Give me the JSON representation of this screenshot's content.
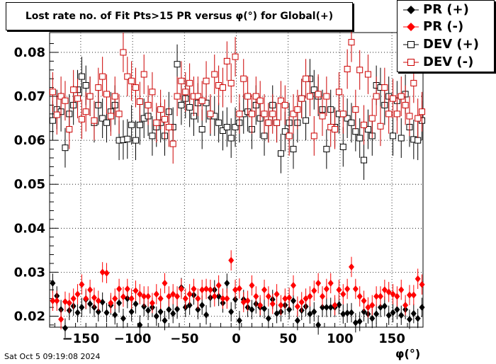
{
  "chart_data": {
    "type": "scatter",
    "title_html_parts": [
      "Lost rate no. of Fit Pts>15 PR versus ",
      "φ",
      "(",
      "°",
      ") for Global(+)"
    ],
    "title": "Lost rate no. of Fit Pts>15 PR versus φ(°) for Global(+)",
    "xlabel": "φ(°)",
    "ylabel": "",
    "xlim": [
      -180,
      180
    ],
    "ylim": [
      0.0175,
      0.0845
    ],
    "xticks": [
      -150,
      -100,
      -50,
      0,
      50,
      100,
      150
    ],
    "yticks": [
      0.02,
      0.03,
      0.04,
      0.05,
      0.06,
      0.07,
      0.08
    ],
    "grid": true,
    "legend_position": "top-right",
    "series": [
      {
        "name": "PR (+)",
        "marker": "filled-diamond",
        "color": "#000000",
        "x": [
          -177,
          -173,
          -169,
          -165,
          -161,
          -157,
          -153,
          -149,
          -145,
          -141,
          -137,
          -133,
          -129,
          -125,
          -121,
          -117,
          -113,
          -109,
          -105,
          -101,
          -97,
          -93,
          -89,
          -85,
          -81,
          -77,
          -73,
          -69,
          -65,
          -61,
          -57,
          -53,
          -49,
          -45,
          -41,
          -37,
          -33,
          -29,
          -25,
          -21,
          -17,
          -13,
          -9,
          -5,
          -1,
          3,
          7,
          11,
          15,
          19,
          23,
          27,
          31,
          35,
          39,
          43,
          47,
          51,
          55,
          59,
          63,
          67,
          71,
          75,
          79,
          83,
          87,
          91,
          95,
          99,
          103,
          107,
          111,
          115,
          119,
          123,
          127,
          131,
          135,
          139,
          143,
          147,
          151,
          155,
          159,
          163,
          167,
          171,
          175,
          179
        ],
        "y": [
          0.0275,
          0.0246,
          0.0215,
          0.0173,
          0.0213,
          0.0223,
          0.0208,
          0.022,
          0.0238,
          0.0228,
          0.022,
          0.021,
          0.0232,
          0.0208,
          0.0225,
          0.0203,
          0.023,
          0.0195,
          0.024,
          0.021,
          0.0228,
          0.018,
          0.0222,
          0.0213,
          0.022,
          0.02,
          0.021,
          0.019,
          0.0215,
          0.0206,
          0.0216,
          0.0265,
          0.022,
          0.0225,
          0.0248,
          0.0215,
          0.0225,
          0.0203,
          0.0242,
          0.026,
          0.0245,
          0.023,
          0.0275,
          0.021,
          0.0238,
          0.019,
          0.0238,
          0.022,
          0.0215,
          0.0228,
          0.022,
          0.0217,
          0.0195,
          0.0238,
          0.0206,
          0.021,
          0.0225,
          0.0215,
          0.0235,
          0.019,
          0.0213,
          0.0222,
          0.0205,
          0.021,
          0.018,
          0.022,
          0.022,
          0.022,
          0.022,
          0.0226,
          0.0205,
          0.0207,
          0.0208,
          0.0185,
          0.0188,
          0.021,
          0.0205,
          0.0195,
          0.0205,
          0.022,
          0.0223,
          0.0202,
          0.0208,
          0.0215,
          0.0202,
          0.0215,
          0.0193,
          0.0206,
          0.0195,
          0.022
        ],
        "err": [
          0.0022,
          0.0022,
          0.0022,
          0.0022,
          0.0022,
          0.0022,
          0.0022,
          0.0022,
          0.0022,
          0.0022,
          0.0022,
          0.0022,
          0.0022,
          0.0022,
          0.0022,
          0.0022,
          0.0022,
          0.0022,
          0.0022,
          0.0022,
          0.0022,
          0.0022,
          0.0022,
          0.0022,
          0.0022,
          0.0022,
          0.0022,
          0.0022,
          0.0022,
          0.0022,
          0.0022,
          0.0022,
          0.0022,
          0.0022,
          0.0022,
          0.0022,
          0.0022,
          0.0022,
          0.0022,
          0.0022,
          0.0022,
          0.0022,
          0.0022,
          0.0022,
          0.0022,
          0.0022,
          0.0022,
          0.0022,
          0.0022,
          0.0022,
          0.0022,
          0.0022,
          0.0022,
          0.0022,
          0.0022,
          0.0022,
          0.0022,
          0.0022,
          0.0022,
          0.0022,
          0.0022,
          0.0022,
          0.0022,
          0.0022,
          0.0022,
          0.0022,
          0.0022,
          0.0022,
          0.0022,
          0.0022,
          0.0022,
          0.0022,
          0.0022,
          0.0022,
          0.0022,
          0.0022,
          0.0022,
          0.0022,
          0.0022,
          0.0022,
          0.0022,
          0.0022,
          0.0022,
          0.0022,
          0.0022,
          0.0022,
          0.0022,
          0.0022,
          0.0022,
          0.0022
        ]
      },
      {
        "name": "PR (-)",
        "marker": "filled-diamond",
        "color": "#ff0000",
        "x": [
          -177,
          -173,
          -169,
          -165,
          -161,
          -157,
          -153,
          -149,
          -145,
          -141,
          -137,
          -133,
          -129,
          -125,
          -121,
          -117,
          -113,
          -109,
          -105,
          -101,
          -97,
          -93,
          -89,
          -85,
          -81,
          -77,
          -73,
          -69,
          -65,
          -61,
          -57,
          -53,
          -49,
          -45,
          -41,
          -37,
          -33,
          -29,
          -25,
          -21,
          -17,
          -13,
          -9,
          -5,
          -1,
          3,
          7,
          11,
          15,
          19,
          23,
          27,
          31,
          35,
          39,
          43,
          47,
          51,
          55,
          59,
          63,
          67,
          71,
          75,
          79,
          83,
          87,
          91,
          95,
          99,
          103,
          107,
          111,
          115,
          119,
          123,
          127,
          131,
          135,
          139,
          143,
          147,
          151,
          155,
          159,
          163,
          167,
          171,
          175,
          179
        ],
        "y": [
          0.0235,
          0.0235,
          0.0193,
          0.0233,
          0.023,
          0.024,
          0.025,
          0.0272,
          0.024,
          0.026,
          0.0242,
          0.0235,
          0.03,
          0.0298,
          0.023,
          0.024,
          0.0262,
          0.0244,
          0.0262,
          0.024,
          0.0258,
          0.025,
          0.0245,
          0.0245,
          0.023,
          0.025,
          0.024,
          0.0275,
          0.0245,
          0.025,
          0.0245,
          0.0262,
          0.024,
          0.025,
          0.0262,
          0.024,
          0.026,
          0.0262,
          0.026,
          0.0245,
          0.027,
          0.024,
          0.024,
          0.0327,
          0.026,
          0.0263,
          0.0232,
          0.0235,
          0.027,
          0.0245,
          0.0225,
          0.026,
          0.0245,
          0.0228,
          0.025,
          0.0225,
          0.024,
          0.0242,
          0.027,
          0.0222,
          0.0232,
          0.024,
          0.0245,
          0.0258,
          0.0275,
          0.0245,
          0.0262,
          0.0275,
          0.0225,
          0.026,
          0.025,
          0.0262,
          0.0312,
          0.0262,
          0.0245,
          0.0235,
          0.022,
          0.0225,
          0.0245,
          0.0245,
          0.026,
          0.0255,
          0.025,
          0.0245,
          0.026,
          0.0225,
          0.0248,
          0.0248,
          0.0285,
          0.0272
        ],
        "err": [
          0.0023,
          0.0023,
          0.0023,
          0.0023,
          0.0023,
          0.0023,
          0.0023,
          0.0023,
          0.0023,
          0.0023,
          0.0023,
          0.0023,
          0.0023,
          0.0023,
          0.0023,
          0.0023,
          0.0023,
          0.0023,
          0.0023,
          0.0023,
          0.0023,
          0.0023,
          0.0023,
          0.0023,
          0.0023,
          0.0023,
          0.0023,
          0.0023,
          0.0023,
          0.0023,
          0.0023,
          0.0023,
          0.0023,
          0.0023,
          0.0023,
          0.0023,
          0.0023,
          0.0023,
          0.0023,
          0.0023,
          0.0023,
          0.0023,
          0.0023,
          0.0023,
          0.0023,
          0.0023,
          0.0023,
          0.0023,
          0.0023,
          0.0023,
          0.0023,
          0.0023,
          0.0023,
          0.0023,
          0.0023,
          0.0023,
          0.0023,
          0.0023,
          0.0023,
          0.0023,
          0.0023,
          0.0023,
          0.0023,
          0.0023,
          0.0023,
          0.0023,
          0.0023,
          0.0023,
          0.0023,
          0.0023,
          0.0023,
          0.0023,
          0.0023,
          0.0023,
          0.0023,
          0.0023,
          0.0023,
          0.0023,
          0.0023,
          0.0023,
          0.0023,
          0.0023,
          0.0023,
          0.0023,
          0.0023,
          0.0023,
          0.0023,
          0.0023,
          0.0023,
          0.0023
        ]
      },
      {
        "name": "DEV (+)",
        "marker": "open-square",
        "color": "#000000",
        "x": [
          -177,
          -173,
          -169,
          -165,
          -161,
          -157,
          -153,
          -149,
          -145,
          -141,
          -137,
          -133,
          -129,
          -125,
          -121,
          -117,
          -113,
          -109,
          -105,
          -101,
          -97,
          -93,
          -89,
          -85,
          -81,
          -77,
          -73,
          -69,
          -65,
          -61,
          -57,
          -53,
          -49,
          -45,
          -41,
          -37,
          -33,
          -29,
          -25,
          -21,
          -17,
          -13,
          -9,
          -5,
          -1,
          3,
          7,
          11,
          15,
          19,
          23,
          27,
          31,
          35,
          39,
          43,
          47,
          51,
          55,
          59,
          63,
          67,
          71,
          75,
          79,
          83,
          87,
          91,
          95,
          99,
          103,
          107,
          111,
          115,
          119,
          123,
          127,
          131,
          135,
          139,
          143,
          147,
          151,
          155,
          159,
          163,
          167,
          171,
          175,
          179
        ],
        "y": [
          0.0645,
          0.067,
          0.0665,
          0.0583,
          0.066,
          0.068,
          0.0715,
          0.0745,
          0.0725,
          0.07,
          0.064,
          0.068,
          0.065,
          0.064,
          0.0665,
          0.068,
          0.06,
          0.0601,
          0.0603,
          0.0635,
          0.06,
          0.0635,
          0.065,
          0.0655,
          0.061,
          0.063,
          0.064,
          0.061,
          0.0665,
          0.063,
          0.0773,
          0.068,
          0.0695,
          0.0675,
          0.0655,
          0.0685,
          0.0625,
          0.0685,
          0.0655,
          0.0655,
          0.064,
          0.0622,
          0.063,
          0.0605,
          0.063,
          0.064,
          0.066,
          0.0665,
          0.0625,
          0.068,
          0.065,
          0.061,
          0.064,
          0.068,
          0.064,
          0.057,
          0.062,
          0.064,
          0.058,
          0.064,
          0.0695,
          0.0645,
          0.074,
          0.0715,
          0.07,
          0.067,
          0.058,
          0.067,
          0.063,
          0.066,
          0.0585,
          0.065,
          0.064,
          0.062,
          0.0605,
          0.0555,
          0.0625,
          0.061,
          0.0725,
          0.072,
          0.068,
          0.07,
          0.061,
          0.069,
          0.0605,
          0.0705,
          0.063,
          0.0602,
          0.06,
          0.0645
        ],
        "err": [
          0.0045,
          0.0045,
          0.0045,
          0.0045,
          0.0045,
          0.0045,
          0.0045,
          0.0045,
          0.0045,
          0.0045,
          0.0045,
          0.0045,
          0.0045,
          0.0045,
          0.0045,
          0.0045,
          0.0045,
          0.0045,
          0.0045,
          0.0045,
          0.0045,
          0.0045,
          0.0045,
          0.0045,
          0.0045,
          0.0045,
          0.0045,
          0.0045,
          0.0045,
          0.0045,
          0.0045,
          0.0045,
          0.0045,
          0.0045,
          0.0045,
          0.0045,
          0.0045,
          0.0045,
          0.0045,
          0.0045,
          0.0045,
          0.0045,
          0.0045,
          0.0045,
          0.0045,
          0.0045,
          0.0045,
          0.0045,
          0.0045,
          0.0045,
          0.0045,
          0.0045,
          0.0045,
          0.0045,
          0.0045,
          0.0045,
          0.0045,
          0.0045,
          0.0045,
          0.0045,
          0.0045,
          0.0045,
          0.0045,
          0.0045,
          0.0045,
          0.0045,
          0.0045,
          0.0045,
          0.0045,
          0.0045,
          0.0045,
          0.0045,
          0.0045,
          0.0045,
          0.0045,
          0.0045,
          0.0045,
          0.0045,
          0.0045,
          0.0045,
          0.0045,
          0.0045,
          0.0045,
          0.0045,
          0.0045,
          0.0045,
          0.0045,
          0.0045,
          0.0045,
          0.0045
        ]
      },
      {
        "name": "DEV (-)",
        "marker": "open-square",
        "color": "#cc0000",
        "x": [
          -177,
          -173,
          -169,
          -165,
          -161,
          -157,
          -153,
          -149,
          -145,
          -141,
          -137,
          -133,
          -129,
          -125,
          -121,
          -117,
          -113,
          -109,
          -105,
          -101,
          -97,
          -93,
          -89,
          -85,
          -81,
          -77,
          -73,
          -69,
          -65,
          -61,
          -57,
          -53,
          -49,
          -45,
          -41,
          -37,
          -33,
          -29,
          -25,
          -21,
          -17,
          -13,
          -9,
          -5,
          -1,
          3,
          7,
          11,
          15,
          19,
          23,
          27,
          31,
          35,
          39,
          43,
          47,
          51,
          55,
          59,
          63,
          67,
          71,
          75,
          79,
          83,
          87,
          91,
          95,
          99,
          103,
          107,
          111,
          115,
          119,
          123,
          127,
          131,
          135,
          139,
          143,
          147,
          151,
          155,
          159,
          163,
          167,
          171,
          175,
          179
        ],
        "y": [
          0.071,
          0.0658,
          0.07,
          0.069,
          0.0625,
          0.0715,
          0.0695,
          0.0648,
          0.0665,
          0.07,
          0.0645,
          0.072,
          0.0745,
          0.0705,
          0.0655,
          0.07,
          0.066,
          0.08,
          0.0745,
          0.0735,
          0.072,
          0.0688,
          0.075,
          0.068,
          0.071,
          0.064,
          0.067,
          0.0648,
          0.063,
          0.0592,
          0.07,
          0.0735,
          0.071,
          0.073,
          0.07,
          0.07,
          0.069,
          0.0735,
          0.066,
          0.075,
          0.0725,
          0.072,
          0.078,
          0.073,
          0.079,
          0.066,
          0.074,
          0.07,
          0.066,
          0.07,
          0.069,
          0.066,
          0.064,
          0.066,
          0.064,
          0.069,
          0.068,
          0.061,
          0.066,
          0.067,
          0.0695,
          0.074,
          0.07,
          0.061,
          0.0705,
          0.0655,
          0.07,
          0.063,
          0.0625,
          0.071,
          0.066,
          0.0762,
          0.0823,
          0.067,
          0.076,
          0.0635,
          0.075,
          0.065,
          0.07,
          0.0632,
          0.072,
          0.066,
          0.0695,
          0.066,
          0.07,
          0.068,
          0.0655,
          0.073,
          0.065,
          0.0665
        ],
        "err": [
          0.0045,
          0.0045,
          0.0045,
          0.0045,
          0.0045,
          0.0045,
          0.0045,
          0.0045,
          0.0045,
          0.0045,
          0.0045,
          0.0045,
          0.0045,
          0.0045,
          0.0045,
          0.0045,
          0.0045,
          0.0045,
          0.0045,
          0.0045,
          0.0045,
          0.0045,
          0.0045,
          0.0045,
          0.0045,
          0.0045,
          0.0045,
          0.0045,
          0.0045,
          0.0045,
          0.0045,
          0.0045,
          0.0045,
          0.0045,
          0.0045,
          0.0045,
          0.0045,
          0.0045,
          0.0045,
          0.0045,
          0.0045,
          0.0045,
          0.0045,
          0.0045,
          0.0045,
          0.0045,
          0.0045,
          0.0045,
          0.0045,
          0.0045,
          0.0045,
          0.0045,
          0.0045,
          0.0045,
          0.0045,
          0.0045,
          0.0045,
          0.0045,
          0.0045,
          0.0045,
          0.0045,
          0.0045,
          0.0045,
          0.0045,
          0.0045,
          0.0045,
          0.0045,
          0.0045,
          0.0045,
          0.0045,
          0.0045,
          0.0045,
          0.0045,
          0.0045,
          0.0045,
          0.0045,
          0.0045,
          0.0045,
          0.0045,
          0.0045,
          0.0045,
          0.0045,
          0.0045,
          0.0045,
          0.0045,
          0.0045,
          0.0045,
          0.0045,
          0.0045,
          0.0045
        ]
      }
    ]
  },
  "legend": {
    "entries": [
      "PR (+)",
      "PR (-)",
      "DEV (+)",
      "DEV (-)"
    ]
  },
  "footer": {
    "timestamp": "Sat Oct  5 09:19:08 2024"
  },
  "colors": {
    "black": "#000000",
    "red": "#ff0000",
    "dark_red": "#cc0000",
    "grid": "#000000"
  }
}
